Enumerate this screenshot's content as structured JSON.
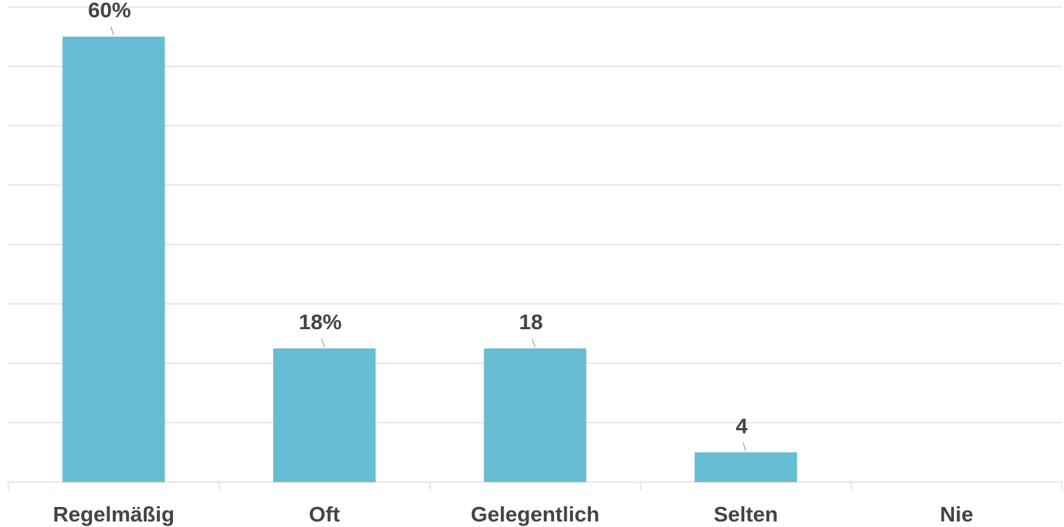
{
  "chart_data": {
    "type": "bar",
    "categories": [
      "Regelmäßig",
      "Oft",
      "Gelegentlich",
      "Selten",
      "Nie"
    ],
    "values": [
      60,
      18,
      18,
      4,
      0
    ],
    "value_labels": [
      "60%",
      "18%",
      "18",
      "4",
      null
    ],
    "color": "#67bdd3",
    "ylim": [
      0,
      64
    ],
    "yticks": [
      0,
      8,
      16,
      24,
      32,
      40,
      48,
      56,
      64
    ],
    "grid": true
  }
}
